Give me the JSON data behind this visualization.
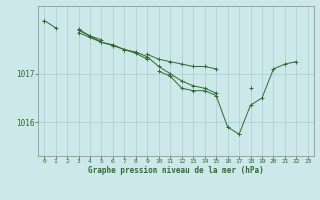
{
  "background_color": "#cce8ea",
  "grid_color": "#aacccc",
  "line_color": "#2d6b2d",
  "marker_color": "#2d6b2d",
  "text_color": "#2d6b2d",
  "xlabel": "Graphe pression niveau de la mer (hPa)",
  "xlim": [
    -0.5,
    23.5
  ],
  "ylim": [
    1015.3,
    1018.4
  ],
  "yticks": [
    1016,
    1017
  ],
  "ytick_labels": [
    "1016",
    "1017"
  ],
  "xticks": [
    0,
    1,
    2,
    3,
    4,
    5,
    6,
    7,
    8,
    9,
    10,
    11,
    12,
    13,
    14,
    15,
    16,
    17,
    18,
    19,
    20,
    21,
    22,
    23
  ],
  "series": [
    [
      1018.1,
      1017.95,
      null,
      1017.85,
      1017.75,
      1017.65,
      1017.6,
      1017.5,
      1017.45,
      1017.35,
      1017.15,
      1017.0,
      1016.85,
      1016.75,
      1016.7,
      1016.6,
      null,
      null,
      1016.7,
      null,
      null,
      null,
      null,
      null
    ],
    [
      1018.1,
      null,
      null,
      1017.9,
      1017.78,
      1017.65,
      1017.58,
      1017.5,
      1017.42,
      1017.3,
      null,
      null,
      null,
      null,
      null,
      null,
      null,
      null,
      null,
      null,
      null,
      null,
      null,
      null
    ],
    [
      null,
      null,
      null,
      1017.92,
      1017.78,
      1017.7,
      null,
      null,
      null,
      null,
      null,
      null,
      null,
      null,
      null,
      null,
      null,
      null,
      null,
      null,
      null,
      null,
      null,
      null
    ],
    [
      null,
      null,
      null,
      null,
      null,
      null,
      null,
      null,
      null,
      null,
      1017.05,
      1016.95,
      1016.7,
      1016.65,
      1016.65,
      1016.55,
      1015.9,
      1015.75,
      1016.35,
      1016.5,
      1017.1,
      1017.2,
      1017.25,
      null
    ],
    [
      null,
      null,
      null,
      null,
      null,
      null,
      null,
      null,
      null,
      1017.4,
      1017.3,
      1017.25,
      1017.2,
      1017.15,
      1017.15,
      1017.1,
      null,
      null,
      null,
      null,
      null,
      null,
      null,
      null
    ]
  ]
}
